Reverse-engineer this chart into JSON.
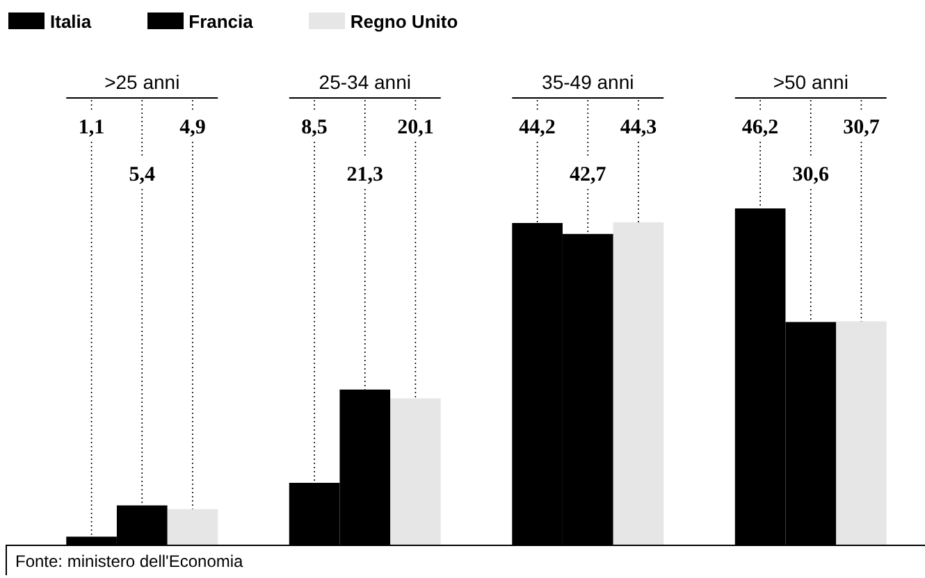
{
  "chart_data": {
    "type": "bar",
    "categories": [
      ">25 anni",
      "25-34 anni",
      "35-49 anni",
      ">50 anni"
    ],
    "series": [
      {
        "name": "Italia",
        "color": "#000000",
        "values": [
          1.1,
          8.5,
          44.2,
          46.2
        ],
        "value_labels": [
          "1,1",
          "8,5",
          "44,2",
          "46,2"
        ]
      },
      {
        "name": "Francia",
        "color": "#000000",
        "values": [
          5.4,
          21.3,
          42.7,
          30.6
        ],
        "value_labels": [
          "5,4",
          "21,3",
          "42,7",
          "30,6"
        ]
      },
      {
        "name": "Regno Unito",
        "color": "#e6e6e6",
        "values": [
          4.9,
          20.1,
          44.3,
          30.7
        ],
        "value_labels": [
          "4,9",
          "20,1",
          "44,3",
          "30,7"
        ]
      }
    ],
    "legend": "top left",
    "annotations": [
      "Fonte: ministero dell'Economia"
    ]
  }
}
